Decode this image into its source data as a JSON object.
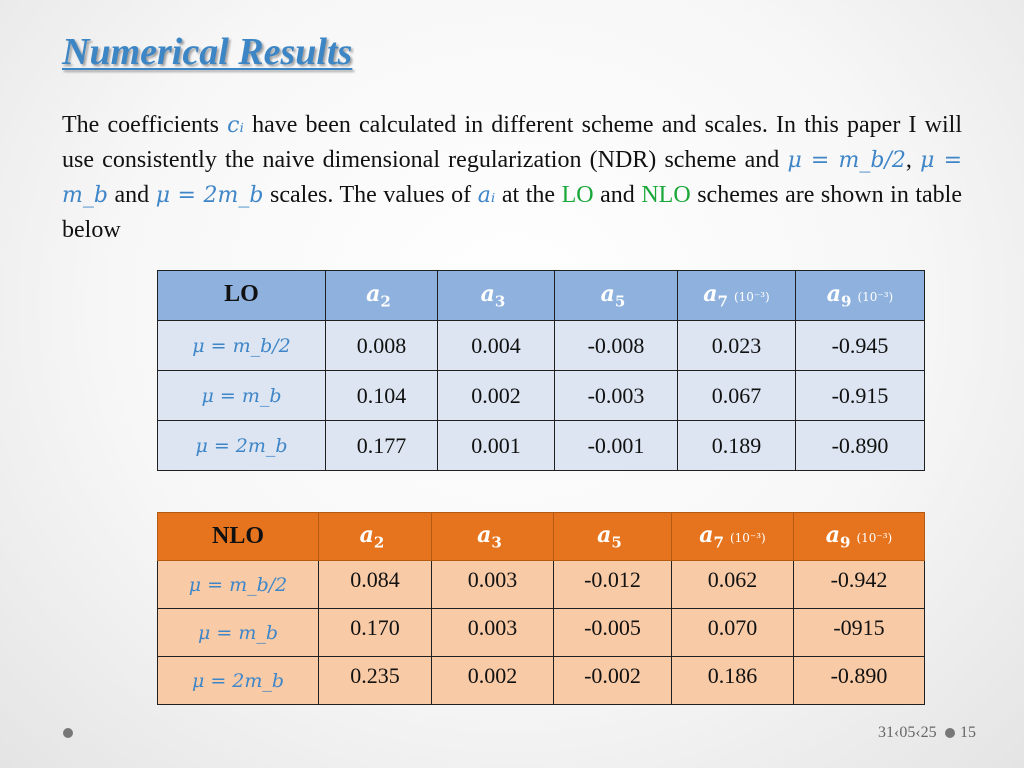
{
  "title": "Numerical Results",
  "paragraph": {
    "t1": "The coefficients ",
    "m1": "cᵢ",
    "t2": " have been calculated in different scheme and scales. In this paper I will use consistently the naive dimensional regularization (NDR) scheme and ",
    "m2": "μ = m_b/2",
    "t3": ", ",
    "m3": "μ = m_b",
    "t4": " and ",
    "m4": "μ = 2m_b",
    "t5": "  scales. The values of ",
    "m5": "aᵢ",
    "t6": " at the ",
    "g1": "LO",
    "t7": " and ",
    "g2": "NLO",
    "t8": " schemes are shown in table below"
  },
  "lo_table": {
    "corner": "LO",
    "headers": [
      {
        "coef": "a",
        "sub": "2",
        "scale": ""
      },
      {
        "coef": "a",
        "sub": "3",
        "scale": ""
      },
      {
        "coef": "a",
        "sub": "5",
        "scale": ""
      },
      {
        "coef": "a",
        "sub": "7",
        "scale": "(10⁻³)"
      },
      {
        "coef": "a",
        "sub": "9",
        "scale": "(10⁻³)"
      }
    ],
    "rows": [
      {
        "label": "μ = m_b/2",
        "values": [
          "0.008",
          "0.004",
          "-0.008",
          "0.023",
          "-0.945"
        ]
      },
      {
        "label": "μ = m_b",
        "values": [
          "0.104",
          "0.002",
          "-0.003",
          "0.067",
          "-0.915"
        ]
      },
      {
        "label": "μ = 2m_b",
        "values": [
          "0.177",
          "0.001",
          "-0.001",
          "0.189",
          "-0.890"
        ]
      }
    ]
  },
  "nlo_table": {
    "corner": "NLO",
    "headers": [
      {
        "coef": "a",
        "sub": "2",
        "scale": ""
      },
      {
        "coef": "a",
        "sub": "3",
        "scale": ""
      },
      {
        "coef": "a",
        "sub": "5",
        "scale": ""
      },
      {
        "coef": "a",
        "sub": "7",
        "scale": "(10⁻³)"
      },
      {
        "coef": "a",
        "sub": "9",
        "scale": "(10⁻³)"
      }
    ],
    "rows": [
      {
        "label": "μ = m_b/2",
        "values": [
          "0.084",
          "0.003",
          "-0.012",
          "0.062",
          "-0.942"
        ]
      },
      {
        "label": "μ = m_b",
        "values": [
          "0.170",
          "0.003",
          "-0.005",
          "0.070",
          "-0915"
        ]
      },
      {
        "label": "μ = 2m_b",
        "values": [
          "0.235",
          "0.002",
          "-0.002",
          "0.186",
          "-0.890"
        ]
      }
    ]
  },
  "footer": {
    "date": "31‹05‹25",
    "page": "15"
  },
  "colors": {
    "title": "#3d86c6",
    "math": "#3f86c8",
    "green": "#19a839",
    "lo_header": "#8eb1de",
    "lo_cell": "#dce5f1",
    "nlo_header": "#e6741e",
    "nlo_cell": "#f8caa6"
  }
}
